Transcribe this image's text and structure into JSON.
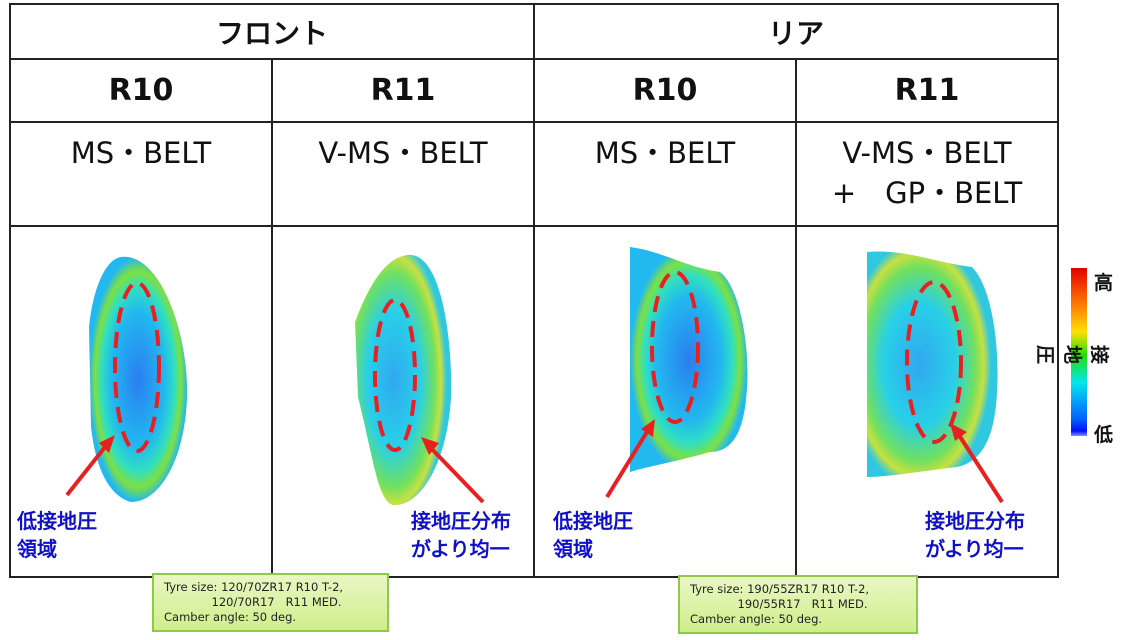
{
  "header": {
    "front": "フロント",
    "rear": "リア"
  },
  "columns": [
    {
      "model": "R10",
      "belt": "MS・BELT",
      "belt2": ""
    },
    {
      "model": "R11",
      "belt": "V-MS・BELT",
      "belt2": ""
    },
    {
      "model": "R10",
      "belt": "MS・BELT",
      "belt2": ""
    },
    {
      "model": "R11",
      "belt": "V-MS・BELT",
      "belt2": "+　GP・BELT"
    }
  ],
  "annotations": {
    "low_area_1": "低接地圧",
    "low_area_2": "領域",
    "uniform_1": "接地圧分布",
    "uniform_2": "がより均一"
  },
  "legend": {
    "high": "高",
    "low": "低",
    "label": "接地圧"
  },
  "notes": {
    "front": "Tyre size: 120/70ZR17 R10 T-2,\n             120/70R17   R11 MED.\nCamber angle: 50 deg.",
    "rear": "Tyre size: 190/55ZR17 R10 T-2,\n             190/55R17   R11 MED.\nCamber angle: 50 deg."
  },
  "colors": {
    "annotation": "#1010c8",
    "dashed": "#e82020"
  }
}
